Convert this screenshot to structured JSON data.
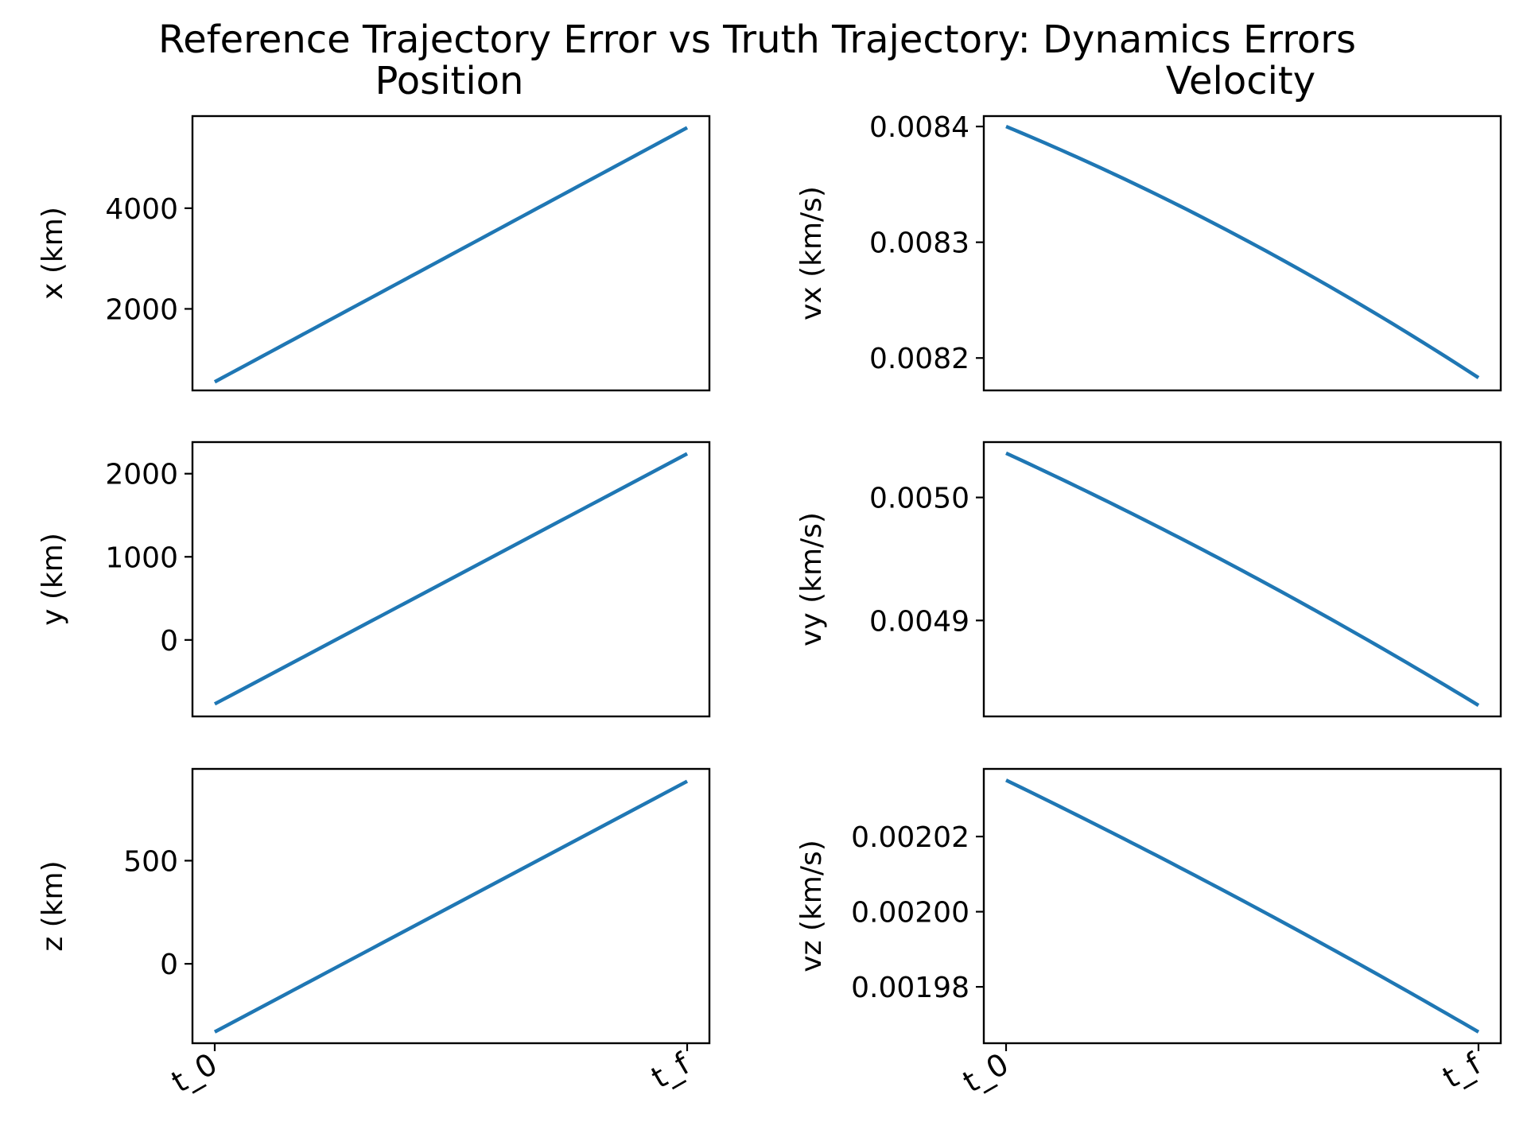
{
  "figure": {
    "title": "Reference Trajectory Error vs Truth Trajectory: Dynamics Errors",
    "left_column_title": "Position",
    "right_column_title": "Velocity"
  },
  "chart_data": [
    {
      "id": "x",
      "column": "Position",
      "type": "line",
      "ylabel": "x (km)",
      "x": [
        "t_0",
        "t_f"
      ],
      "show_xticks": false,
      "ylim": [
        380,
        5830
      ],
      "yticks": [
        2000,
        4000
      ],
      "ytick_labels": [
        "2000",
        "4000"
      ],
      "series": [
        {
          "values": [
            550,
            5600
          ],
          "curvature": 0
        }
      ],
      "color": "#1f77b4"
    },
    {
      "id": "vx",
      "column": "Velocity",
      "type": "line",
      "ylabel": "vx (km/s)",
      "x": [
        "t_0",
        "t_f"
      ],
      "show_xticks": false,
      "ylim": [
        0.008172,
        0.008409
      ],
      "yticks": [
        0.0082,
        0.0083,
        0.0084
      ],
      "ytick_labels": [
        "0.0082",
        "0.0083",
        "0.0084"
      ],
      "series": [
        {
          "values": [
            0.0084,
            0.008183
          ],
          "curvature": -1.2e-05
        }
      ],
      "color": "#1f77b4"
    },
    {
      "id": "y",
      "column": "Position",
      "type": "line",
      "ylabel": "y (km)",
      "x": [
        "t_0",
        "t_f"
      ],
      "show_xticks": false,
      "ylim": [
        -920,
        2380
      ],
      "yticks": [
        0,
        1000,
        2000
      ],
      "ytick_labels": [
        "0",
        "1000",
        "2000"
      ],
      "series": [
        {
          "values": [
            -770,
            2240
          ],
          "curvature": 0
        }
      ],
      "color": "#1f77b4"
    },
    {
      "id": "vy",
      "column": "Velocity",
      "type": "line",
      "ylabel": "vy (km/s)",
      "x": [
        "t_0",
        "t_f"
      ],
      "show_xticks": false,
      "ylim": [
        0.004822,
        0.005045
      ],
      "yticks": [
        0.0049,
        0.005
      ],
      "ytick_labels": [
        "0.0049",
        "0.0050"
      ],
      "series": [
        {
          "values": [
            0.005036,
            0.004831
          ],
          "curvature": -7e-06
        }
      ],
      "color": "#1f77b4"
    },
    {
      "id": "z",
      "column": "Position",
      "type": "line",
      "ylabel": "z (km)",
      "x": [
        "t_0",
        "t_f"
      ],
      "show_xticks": true,
      "ylim": [
        -385,
        945
      ],
      "yticks": [
        0,
        500
      ],
      "ytick_labels": [
        "0",
        "500"
      ],
      "series": [
        {
          "values": [
            -330,
            885
          ],
          "curvature": 0
        }
      ],
      "color": "#1f77b4"
    },
    {
      "id": "vz",
      "column": "Velocity",
      "type": "line",
      "ylabel": "vz (km/s)",
      "x": [
        "t_0",
        "t_f"
      ],
      "show_xticks": true,
      "ylim": [
        0.001965,
        0.002038
      ],
      "yticks": [
        0.00198,
        0.002,
        0.00202
      ],
      "ytick_labels": [
        "0.00198",
        "0.00200",
        "0.00202"
      ],
      "series": [
        {
          "values": [
            0.002035,
            0.001968
          ],
          "curvature": -1.5e-06
        }
      ],
      "color": "#1f77b4"
    }
  ]
}
